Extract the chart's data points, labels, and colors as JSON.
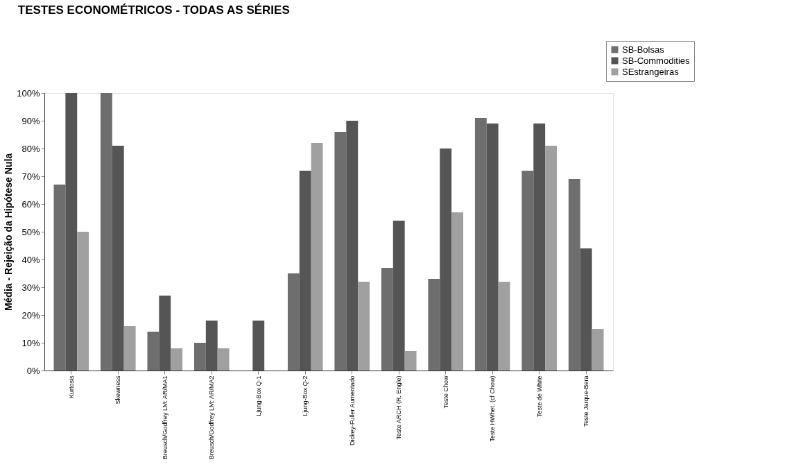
{
  "chart_data": {
    "type": "bar",
    "title": "TESTES ECONOMÉTRICOS - TODAS AS SÉRIES",
    "ylabel": "Média - Rejeição da Hipótese Nula",
    "categories": [
      "Kurtosis",
      "Skewness",
      "Breusch/Godfrey LM: AR/MA1",
      "Breusch/Godfrey LM: AR/MA2",
      "Ljung-Box Q-1",
      "Ljung-Box Q-2",
      "Dickey-Fuller Aumentado",
      "Teste ARCH (R. Engle)",
      "Teste Chow",
      "Teste HWhet. (cf Chow)",
      "Teste de White",
      "Teste Jarque-Bera"
    ],
    "series": [
      {
        "name": "SB-Bolsas",
        "color": "#6e6e6e",
        "values": [
          67,
          100,
          14,
          10,
          null,
          35,
          86,
          37,
          33,
          91,
          72,
          69
        ]
      },
      {
        "name": "SB-Commodities",
        "color": "#555555",
        "values": [
          100,
          81,
          27,
          18,
          18,
          72,
          90,
          54,
          80,
          89,
          89,
          44
        ]
      },
      {
        "name": "SEstrangeiras",
        "color": "#a0a0a0",
        "values": [
          50,
          16,
          8,
          8,
          null,
          82,
          32,
          7,
          57,
          32,
          81,
          15
        ]
      }
    ],
    "ylim": [
      0,
      100
    ],
    "yticks": [
      {
        "value": 0,
        "label": "0%"
      },
      {
        "value": 10,
        "label": "10%"
      },
      {
        "value": 20,
        "label": "20%"
      },
      {
        "value": 30,
        "label": "30%"
      },
      {
        "value": 40,
        "label": "40%"
      },
      {
        "value": 50,
        "label": "50%"
      },
      {
        "value": 60,
        "label": "60%"
      },
      {
        "value": 70,
        "label": "70%"
      },
      {
        "value": 80,
        "label": "80%"
      },
      {
        "value": 90,
        "label": "90%"
      },
      {
        "value": 100,
        "label": "100%"
      }
    ],
    "grid": false,
    "legend": "top right"
  }
}
